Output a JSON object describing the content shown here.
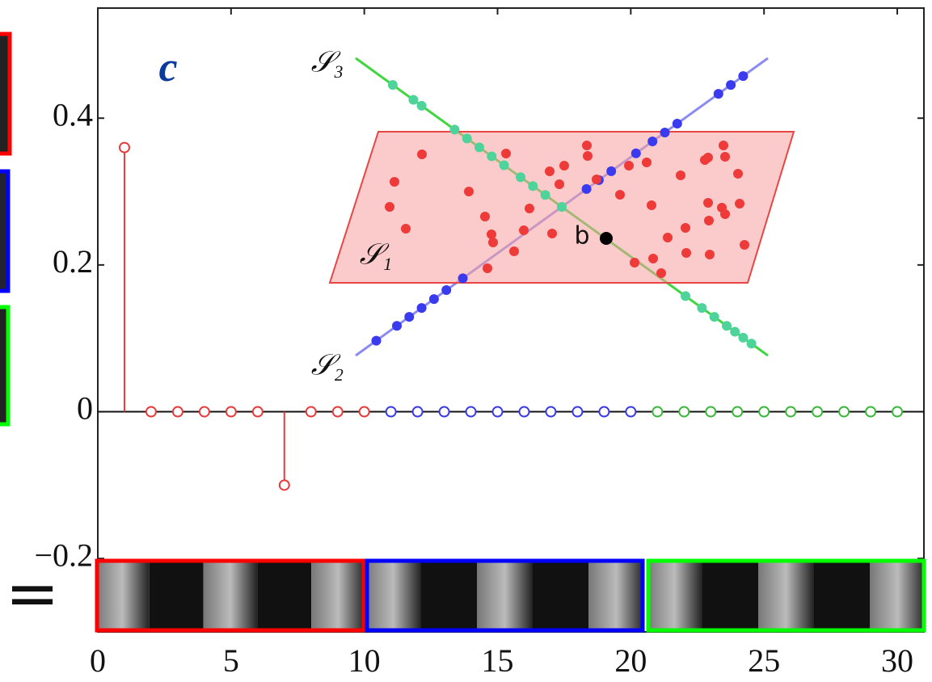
{
  "chart_data": {
    "type": "stem",
    "annotations": {
      "panel": "c",
      "s3": "𝒮₃",
      "s2": "𝒮₂",
      "s1": "𝒮₁",
      "b": "b",
      "equals": "="
    },
    "series": [
      {
        "color": "#e83a3a",
        "x": [
          1,
          2,
          3,
          4,
          5,
          6,
          7,
          8,
          9,
          10
        ],
        "values": [
          0.36,
          0,
          0,
          0,
          0,
          0,
          -0.1,
          0,
          0,
          0
        ]
      },
      {
        "color": "#3a3ae8",
        "x": [
          11,
          12,
          13,
          14,
          15,
          16,
          17,
          18,
          19,
          20
        ],
        "values": [
          0,
          0,
          0,
          0,
          0,
          0,
          0,
          0,
          0,
          0
        ]
      },
      {
        "color": "#3ab83a",
        "x": [
          21,
          22,
          23,
          24,
          25,
          26,
          27,
          28,
          29,
          30
        ],
        "values": [
          0,
          0,
          0,
          0,
          0,
          0,
          0,
          0,
          0,
          0
        ]
      }
    ],
    "xlim": [
      0,
      31
    ],
    "xticks": [
      0,
      5,
      10,
      15,
      20,
      25,
      30
    ],
    "ylim": [
      -0.3,
      0.55
    ],
    "yticks": [
      {
        "value": -0.2,
        "label": "−0.2"
      },
      0,
      0.2,
      0.4
    ]
  }
}
